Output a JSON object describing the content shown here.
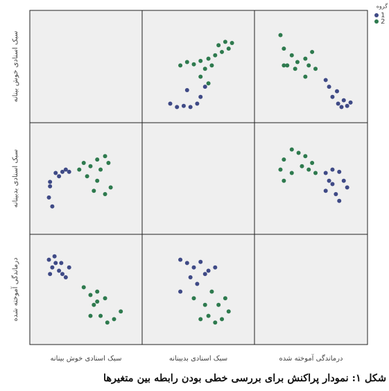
{
  "chart_data": {
    "type": "scatter_matrix",
    "caption": "شکل ۱: نمودار پراکنش برای بررسی خطی بودن رابطه بین متغیرها",
    "variables": [
      "سبک اسنادی خوش بینانه",
      "سبک اسنادی بدبینانه",
      "درماندگی آموخته شده"
    ],
    "legend_title": "گروه",
    "series": [
      {
        "name": "1",
        "color": "#3f4a86"
      },
      {
        "name": "2",
        "color": "#2e7a4e"
      }
    ],
    "xlim": [
      0,
      100
    ],
    "ylim": [
      0,
      100
    ],
    "panels": [
      [
        null,
        {
          "series": [
            {
              "x": [
                25,
                31,
                37,
                43,
                49,
                52,
                56,
                40
              ],
              "y": [
                17,
                14,
                15,
                14,
                17,
                23,
                32,
                29
              ]
            },
            {
              "x": [
                34,
                40,
                46,
                52,
                59,
                65,
                71,
                77,
                56,
                62,
                68,
                74,
                52,
                59,
                80
              ],
              "y": [
                51,
                54,
                52,
                55,
                57,
                60,
                63,
                66,
                48,
                51,
                69,
                72,
                41,
                35,
                71
              ]
            }
          ]
        },
        {
          "series": [
            {
              "x": [
                66,
                69,
                74,
                79,
                82,
                73,
                85,
                63,
                77
              ],
              "y": [
                32,
                23,
                17,
                20,
                15,
                28,
                18,
                38,
                14
              ]
            },
            {
              "x": [
                23,
                26,
                33,
                29,
                38,
                45,
                48,
                54,
                36,
                26,
                51,
                45
              ],
              "y": [
                78,
                66,
                60,
                51,
                54,
                57,
                51,
                48,
                48,
                51,
                63,
                41
              ]
            }
          ]
        }
      ],
      [
        {
          "series": [
            {
              "x": [
                18,
                17,
                20,
                23,
                29,
                32,
                26,
                18,
                35
              ],
              "y": [
                43,
                33,
                25,
                55,
                56,
                58,
                52,
                47,
                56
              ]
            },
            {
              "x": [
                48,
                54,
                60,
                67,
                70,
                51,
                60,
                57,
                67,
                72,
                44,
                63
              ],
              "y": [
                64,
                61,
                67,
                70,
                64,
                52,
                48,
                39,
                36,
                42,
                58,
                58
              ]
            }
          ]
        },
        null,
        {
          "series": [
            {
              "x": [
                63,
                69,
                75,
                79,
                69,
                72,
                63,
                75,
                82,
                66
              ],
              "y": [
                55,
                58,
                56,
                48,
                45,
                36,
                39,
                30,
                42,
                48
              ]
            },
            {
              "x": [
                23,
                26,
                33,
                39,
                45,
                51,
                48,
                54,
                26,
                33,
                42
              ],
              "y": [
                58,
                67,
                76,
                73,
                70,
                64,
                58,
                55,
                48,
                55,
                61
              ]
            }
          ]
        }
      ],
      [
        {
          "series": [
            {
              "x": [
                17,
                20,
                23,
                26,
                29,
                32,
                22,
                28,
                18,
                35
              ],
              "y": [
                77,
                70,
                74,
                67,
                64,
                61,
                80,
                74,
                64,
                70
              ]
            },
            {
              "x": [
                48,
                54,
                60,
                67,
                57,
                63,
                69,
                75,
                81,
                54,
                60
              ],
              "y": [
                52,
                45,
                48,
                42,
                36,
                26,
                20,
                23,
                30,
                26,
                39
              ]
            }
          ]
        },
        {
          "series": [
            {
              "x": [
                34,
                40,
                46,
                52,
                59,
                65,
                43,
                56,
                34,
                49
              ],
              "y": [
                77,
                74,
                70,
                75,
                67,
                70,
                61,
                64,
                48,
                55
              ]
            },
            {
              "x": [
                46,
                56,
                59,
                65,
                71,
                77,
                52,
                68,
                74,
                62
              ],
              "y": [
                42,
                36,
                26,
                20,
                23,
                30,
                23,
                36,
                42,
                48
              ]
            }
          ]
        },
        null
      ]
    ]
  }
}
